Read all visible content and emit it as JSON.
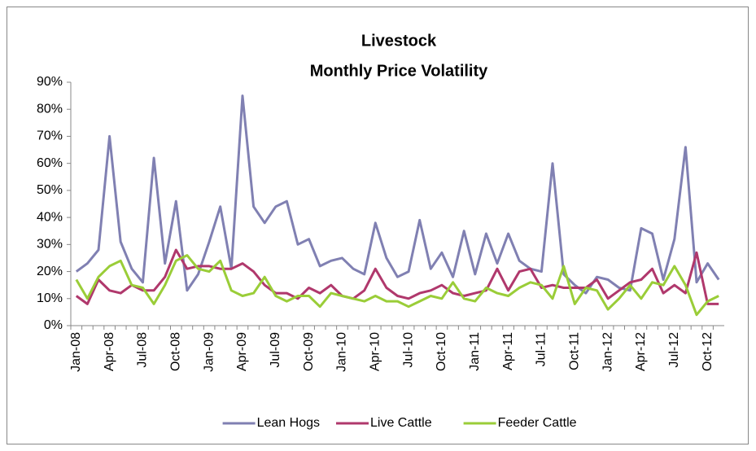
{
  "chart_data": {
    "type": "line",
    "title": "Livestock",
    "subtitle": "Monthly Price Volatility",
    "categories": [
      "Jan-08",
      null,
      null,
      "Apr-08",
      null,
      null,
      "Jul-08",
      null,
      null,
      "Oct-08",
      null,
      null,
      "Jan-09",
      null,
      null,
      "Apr-09",
      null,
      null,
      "Jul-09",
      null,
      null,
      "Oct-09",
      null,
      null,
      "Jan-10",
      null,
      null,
      "Apr-10",
      null,
      null,
      "Jul-10",
      null,
      null,
      "Oct-10",
      null,
      null,
      "Jan-11",
      null,
      null,
      "Apr-11",
      null,
      null,
      "Jul-11",
      null,
      null,
      "Oct-11",
      null,
      null,
      "Jan-12",
      null,
      null,
      "Apr-12",
      null,
      null,
      "Jul-12",
      null,
      null,
      "Oct-12",
      null
    ],
    "series": [
      {
        "name": "Lean Hogs",
        "color": "#8080b2",
        "values": [
          20,
          23,
          28,
          70,
          31,
          21,
          16,
          62,
          23,
          46,
          13,
          19,
          31,
          44,
          21,
          85,
          44,
          38,
          44,
          46,
          30,
          32,
          22,
          24,
          25,
          21,
          19,
          38,
          25,
          18,
          20,
          39,
          21,
          27,
          18,
          35,
          19,
          34,
          23,
          34,
          24,
          21,
          20,
          60,
          19,
          15,
          12,
          18,
          17,
          14,
          13,
          36,
          34,
          17,
          32,
          66,
          16,
          23,
          17
        ]
      },
      {
        "name": "Live Cattle",
        "color": "#b0386c",
        "values": [
          11,
          8,
          17,
          13,
          12,
          15,
          13,
          13,
          18,
          28,
          21,
          22,
          22,
          21,
          21,
          23,
          20,
          15,
          12,
          12,
          10,
          14,
          12,
          15,
          11,
          10,
          13,
          21,
          14,
          11,
          10,
          12,
          13,
          15,
          12,
          11,
          12,
          13,
          21,
          13,
          20,
          21,
          14,
          15,
          14,
          14,
          14,
          17,
          10,
          13,
          16,
          17,
          21,
          12,
          15,
          12,
          27,
          8,
          8
        ]
      },
      {
        "name": "Feeder Cattle",
        "color": "#9acd38",
        "values": [
          17,
          10,
          18,
          22,
          24,
          15,
          14,
          8,
          15,
          24,
          26,
          21,
          20,
          24,
          13,
          11,
          12,
          18,
          11,
          9,
          11,
          11,
          7,
          12,
          11,
          10,
          9,
          11,
          9,
          9,
          7,
          9,
          11,
          10,
          16,
          10,
          9,
          14,
          12,
          11,
          14,
          16,
          15,
          10,
          22,
          8,
          14,
          13,
          6,
          10,
          15,
          10,
          16,
          15,
          22,
          15,
          4,
          9,
          11
        ]
      }
    ],
    "ylim": [
      0,
      90
    ],
    "yticks": [
      {
        "value": 0,
        "label": "0%"
      },
      {
        "value": 10,
        "label": "10%"
      },
      {
        "value": 20,
        "label": "20%"
      },
      {
        "value": 30,
        "label": "30%"
      },
      {
        "value": 40,
        "label": "40%"
      },
      {
        "value": 50,
        "label": "50%"
      },
      {
        "value": 60,
        "label": "60%"
      },
      {
        "value": 70,
        "label": "70%"
      },
      {
        "value": 80,
        "label": "80%"
      },
      {
        "value": 90,
        "label": "90%"
      }
    ],
    "grid": false,
    "legend": "bottom"
  }
}
